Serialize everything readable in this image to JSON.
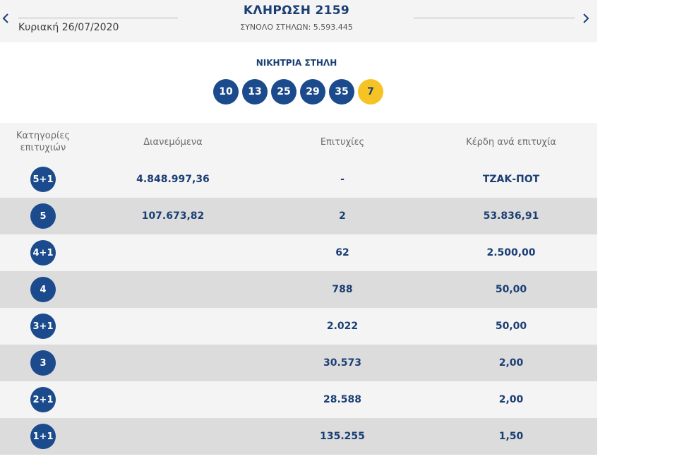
{
  "header": {
    "date": "Κυριακή 26/07/2020",
    "draw_title": "ΚΛΗΡΩΣΗ 2159",
    "columns_total": "ΣΥΝΟΛΟ ΣΤΗΛΩΝ: 5.593.445",
    "prev_icon": "‹",
    "next_icon": "›"
  },
  "winning": {
    "title": "ΝΙΚΗΤΡΙΑ ΣΤΗΛΗ",
    "numbers": [
      "10",
      "13",
      "25",
      "29",
      "35"
    ],
    "joker": "7",
    "colors": {
      "ball": "#1b4b8c",
      "joker": "#f6c325"
    }
  },
  "table": {
    "headers": {
      "category": "Κατηγορίες επιτυχιών",
      "distributed": "Διανεμόμενα",
      "winners": "Επιτυχίες",
      "prize": "Κέρδη ανά επιτυχία"
    },
    "rows": [
      {
        "category": "5+1",
        "distributed": "4.848.997,36",
        "winners": "-",
        "prize": "ΤΖΑΚ-ΠΟΤ"
      },
      {
        "category": "5",
        "distributed": "107.673,82",
        "winners": "2",
        "prize": "53.836,91"
      },
      {
        "category": "4+1",
        "distributed": "",
        "winners": "62",
        "prize": "2.500,00"
      },
      {
        "category": "4",
        "distributed": "",
        "winners": "788",
        "prize": "50,00"
      },
      {
        "category": "3+1",
        "distributed": "",
        "winners": "2.022",
        "prize": "50,00"
      },
      {
        "category": "3",
        "distributed": "",
        "winners": "30.573",
        "prize": "2,00"
      },
      {
        "category": "2+1",
        "distributed": "",
        "winners": "28.588",
        "prize": "2,00"
      },
      {
        "category": "1+1",
        "distributed": "",
        "winners": "135.255",
        "prize": "1,50"
      }
    ]
  }
}
